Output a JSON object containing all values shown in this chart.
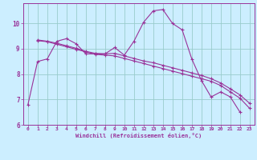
{
  "background_color": "#cceeff",
  "line_color": "#993399",
  "grid_color": "#99cccc",
  "axis_color": "#993399",
  "xlabel": "Windchill (Refroidissement éolien,°C)",
  "xlim": [
    -0.5,
    23.5
  ],
  "ylim": [
    6,
    10.8
  ],
  "yticks": [
    6,
    7,
    8,
    9,
    10
  ],
  "xticks": [
    0,
    1,
    2,
    3,
    4,
    5,
    6,
    7,
    8,
    9,
    10,
    11,
    12,
    13,
    14,
    15,
    16,
    17,
    18,
    19,
    20,
    21,
    22,
    23
  ],
  "series1_x": [
    0,
    1,
    2,
    3,
    4,
    5,
    6,
    7,
    8,
    9,
    10,
    11,
    12,
    13,
    14,
    15,
    16,
    17,
    18,
    19,
    20,
    21,
    22
  ],
  "series1_y": [
    6.8,
    8.5,
    8.6,
    9.3,
    9.4,
    9.2,
    8.8,
    8.8,
    8.8,
    9.05,
    8.75,
    9.3,
    10.05,
    10.5,
    10.55,
    10.0,
    9.75,
    8.6,
    7.75,
    7.1,
    7.3,
    7.1,
    6.5
  ],
  "series2_x": [
    1,
    2,
    3,
    4,
    5,
    6,
    7,
    8,
    9,
    10,
    11,
    12,
    13,
    14,
    15,
    16,
    17,
    18,
    19,
    20,
    21,
    22,
    23
  ],
  "series2_y": [
    9.32,
    9.28,
    9.18,
    9.08,
    8.98,
    8.88,
    8.78,
    8.75,
    8.72,
    8.62,
    8.52,
    8.42,
    8.32,
    8.22,
    8.12,
    8.02,
    7.92,
    7.82,
    7.72,
    7.55,
    7.3,
    7.05,
    6.65
  ],
  "series3_x": [
    1,
    2,
    3,
    4,
    5,
    6,
    7,
    8,
    9,
    10,
    11,
    12,
    13,
    14,
    15,
    16,
    17,
    18,
    19,
    20,
    21,
    22,
    23
  ],
  "series3_y": [
    9.35,
    9.3,
    9.22,
    9.12,
    9.02,
    8.9,
    8.82,
    8.8,
    8.82,
    8.72,
    8.62,
    8.52,
    8.45,
    8.35,
    8.25,
    8.15,
    8.05,
    7.95,
    7.82,
    7.65,
    7.42,
    7.18,
    6.85
  ]
}
